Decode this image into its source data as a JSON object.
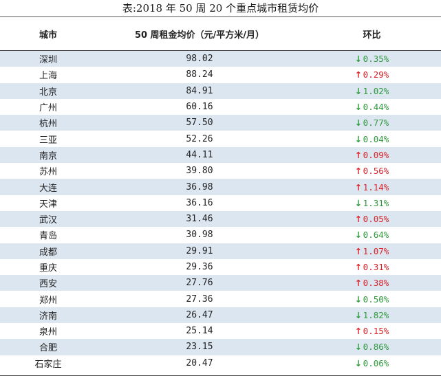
{
  "caption": "表:2018 年 50 周 20 个重点城市租赁均价",
  "headers": {
    "city": "城市",
    "price": "50 周租金均价（元/平方米/月）",
    "change": "环比"
  },
  "colors": {
    "down": "#2e9a3c",
    "up": "#d8232a",
    "stripe": "#dce6f1"
  },
  "rows": [
    {
      "city": "深圳",
      "price": "98.02",
      "dir": "down",
      "change": "0.35%"
    },
    {
      "city": "上海",
      "price": "88.24",
      "dir": "up",
      "change": "0.29%"
    },
    {
      "city": "北京",
      "price": "84.91",
      "dir": "down",
      "change": "1.02%"
    },
    {
      "city": "广州",
      "price": "60.16",
      "dir": "down",
      "change": "0.44%"
    },
    {
      "city": "杭州",
      "price": "57.50",
      "dir": "down",
      "change": "0.77%"
    },
    {
      "city": "三亚",
      "price": "52.26",
      "dir": "down",
      "change": "0.04%"
    },
    {
      "city": "南京",
      "price": "44.11",
      "dir": "up",
      "change": "0.09%"
    },
    {
      "city": "苏州",
      "price": "39.80",
      "dir": "up",
      "change": "0.56%"
    },
    {
      "city": "大连",
      "price": "36.98",
      "dir": "up",
      "change": "1.14%"
    },
    {
      "city": "天津",
      "price": "36.16",
      "dir": "down",
      "change": "1.31%"
    },
    {
      "city": "武汉",
      "price": "31.46",
      "dir": "up",
      "change": "0.05%"
    },
    {
      "city": "青岛",
      "price": "30.98",
      "dir": "down",
      "change": "0.64%"
    },
    {
      "city": "成都",
      "price": "29.91",
      "dir": "up",
      "change": "1.07%"
    },
    {
      "city": "重庆",
      "price": "29.36",
      "dir": "up",
      "change": "0.31%"
    },
    {
      "city": "西安",
      "price": "27.76",
      "dir": "up",
      "change": "0.38%"
    },
    {
      "city": "郑州",
      "price": "27.36",
      "dir": "down",
      "change": "0.50%"
    },
    {
      "city": "济南",
      "price": "26.47",
      "dir": "down",
      "change": "1.82%"
    },
    {
      "city": "泉州",
      "price": "25.14",
      "dir": "up",
      "change": "0.15%"
    },
    {
      "city": "合肥",
      "price": "23.15",
      "dir": "down",
      "change": "0.86%"
    },
    {
      "city": "石家庄",
      "price": "20.47",
      "dir": "down",
      "change": "0.06%"
    }
  ]
}
